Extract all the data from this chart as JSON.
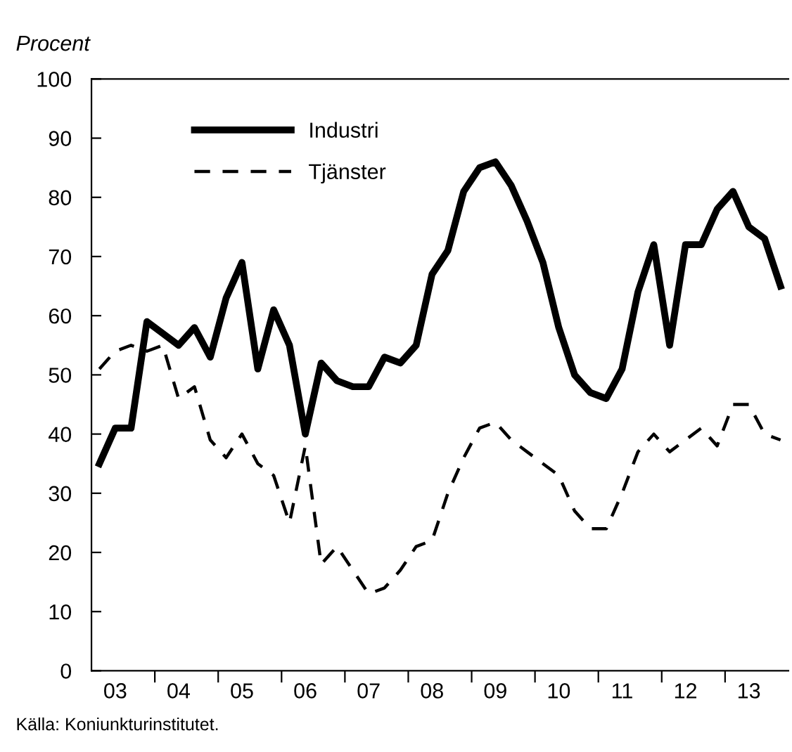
{
  "chart_data": {
    "type": "line",
    "ylabel": "Procent",
    "categories": [
      null,
      "03",
      null,
      null,
      null,
      "04",
      null,
      null,
      null,
      "05",
      null,
      null,
      null,
      "06",
      null,
      null,
      null,
      "07",
      null,
      null,
      null,
      "08",
      null,
      null,
      null,
      "09",
      null,
      null,
      null,
      "10",
      null,
      null,
      null,
      "11",
      null,
      null,
      null,
      "12",
      null,
      null,
      null,
      "13",
      null,
      null
    ],
    "series": [
      {
        "name": "Industri",
        "color": "#000000",
        "line_style": "solid",
        "values": [
          35,
          41,
          41,
          59,
          57,
          55,
          58,
          53,
          63,
          69,
          51,
          61,
          55,
          40,
          52,
          49,
          48,
          48,
          53,
          52,
          55,
          67,
          71,
          81,
          85,
          86,
          82,
          76,
          69,
          58,
          50,
          47,
          46,
          51,
          64,
          72,
          55,
          72,
          72,
          78,
          81,
          75,
          73,
          65
        ]
      },
      {
        "name": "Tjänster",
        "color": "#000000",
        "line_style": "dashed",
        "values": [
          51,
          54,
          55,
          54,
          55,
          46,
          48,
          39,
          36,
          40,
          35,
          33,
          25,
          38,
          18,
          21,
          17,
          13,
          14,
          17,
          21,
          22,
          30,
          36,
          41,
          42,
          39,
          37,
          35,
          33,
          27,
          24,
          24,
          30,
          37,
          40,
          37,
          39,
          41,
          38,
          45,
          45,
          40,
          39
        ]
      }
    ],
    "ylim": [
      0,
      100
    ],
    "yticks": [
      0,
      10,
      20,
      30,
      40,
      50,
      60,
      70,
      80,
      90,
      100
    ],
    "grid": false,
    "legend": "top left",
    "annotations": [
      "Källa: Koniunkturinstitutet."
    ]
  }
}
